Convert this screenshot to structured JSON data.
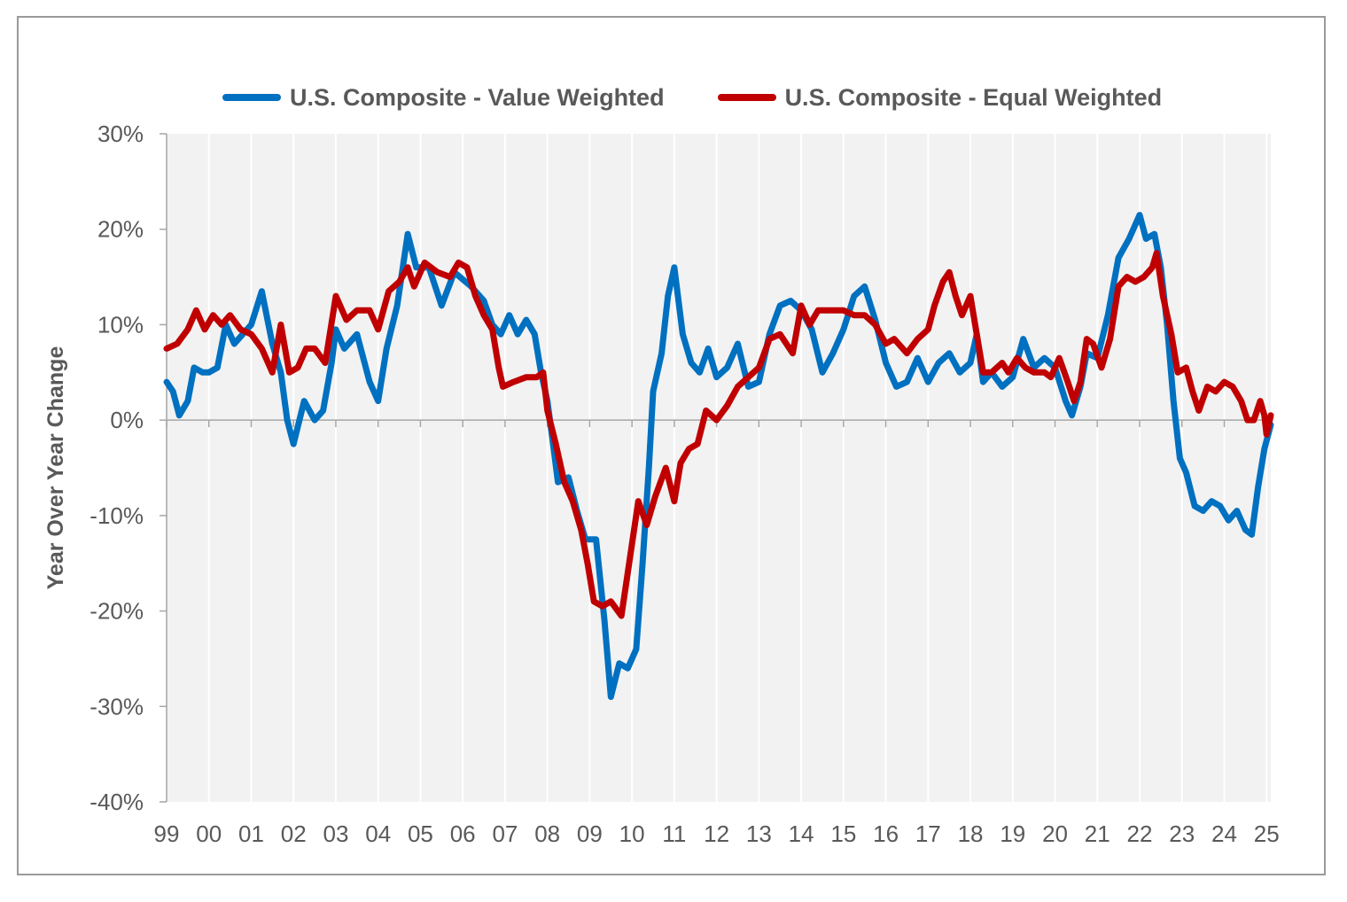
{
  "chart_data": {
    "type": "line",
    "title": "",
    "xlabel": "",
    "ylabel": "Year Over Year Change",
    "x_range": [
      1999.0,
      2025.1
    ],
    "ylim": [
      -40,
      30
    ],
    "y_ticks": [
      30,
      20,
      10,
      0,
      -10,
      -20,
      -30,
      -40
    ],
    "y_tick_labels": [
      "30%",
      "20%",
      "10%",
      "0%",
      "-10%",
      "-20%",
      "-30%",
      "-40%"
    ],
    "x_ticks": [
      1999,
      2000,
      2001,
      2002,
      2003,
      2004,
      2005,
      2006,
      2007,
      2008,
      2009,
      2010,
      2011,
      2012,
      2013,
      2014,
      2015,
      2016,
      2017,
      2018,
      2019,
      2020,
      2021,
      2022,
      2023,
      2024,
      2025
    ],
    "x_tick_labels": [
      "99",
      "00",
      "01",
      "02",
      "03",
      "04",
      "05",
      "06",
      "07",
      "08",
      "09",
      "10",
      "11",
      "12",
      "13",
      "14",
      "15",
      "16",
      "17",
      "18",
      "19",
      "20",
      "21",
      "22",
      "23",
      "24",
      "25"
    ],
    "grid": "vertical",
    "legend_position": "top",
    "series": [
      {
        "name": "U.S. Composite - Value Weighted",
        "color": "#0070C0",
        "points": [
          [
            1999.0,
            4
          ],
          [
            1999.15,
            3
          ],
          [
            1999.3,
            0.5
          ],
          [
            1999.5,
            2
          ],
          [
            1999.65,
            5.5
          ],
          [
            1999.85,
            5
          ],
          [
            2000.0,
            5
          ],
          [
            2000.2,
            5.5
          ],
          [
            2000.4,
            10
          ],
          [
            2000.6,
            8
          ],
          [
            2000.8,
            9
          ],
          [
            2001.0,
            10
          ],
          [
            2001.25,
            13.5
          ],
          [
            2001.5,
            8
          ],
          [
            2001.7,
            5
          ],
          [
            2001.85,
            0
          ],
          [
            2002.0,
            -2.5
          ],
          [
            2002.25,
            2
          ],
          [
            2002.5,
            0
          ],
          [
            2002.7,
            1
          ],
          [
            2002.9,
            6
          ],
          [
            2003.0,
            9.5
          ],
          [
            2003.2,
            7.5
          ],
          [
            2003.5,
            9
          ],
          [
            2003.8,
            4
          ],
          [
            2004.0,
            2
          ],
          [
            2004.2,
            7.5
          ],
          [
            2004.45,
            12
          ],
          [
            2004.7,
            19.5
          ],
          [
            2004.9,
            16
          ],
          [
            2005.2,
            16
          ],
          [
            2005.5,
            12
          ],
          [
            2005.8,
            15.5
          ],
          [
            2006.2,
            14
          ],
          [
            2006.5,
            12.5
          ],
          [
            2006.7,
            10
          ],
          [
            2006.9,
            9
          ],
          [
            2007.1,
            11
          ],
          [
            2007.3,
            9
          ],
          [
            2007.5,
            10.5
          ],
          [
            2007.7,
            9
          ],
          [
            2007.85,
            5
          ],
          [
            2008.0,
            2
          ],
          [
            2008.15,
            -3
          ],
          [
            2008.25,
            -6.5
          ],
          [
            2008.5,
            -6
          ],
          [
            2008.7,
            -9.5
          ],
          [
            2008.9,
            -12.5
          ],
          [
            2009.15,
            -12.5
          ],
          [
            2009.35,
            -21
          ],
          [
            2009.5,
            -29
          ],
          [
            2009.7,
            -25.5
          ],
          [
            2009.9,
            -26
          ],
          [
            2010.1,
            -24
          ],
          [
            2010.25,
            -15
          ],
          [
            2010.4,
            -5
          ],
          [
            2010.5,
            3
          ],
          [
            2010.7,
            7
          ],
          [
            2010.85,
            13
          ],
          [
            2011.0,
            16
          ],
          [
            2011.2,
            9
          ],
          [
            2011.4,
            6
          ],
          [
            2011.6,
            5
          ],
          [
            2011.8,
            7.5
          ],
          [
            2012.0,
            4.5
          ],
          [
            2012.25,
            5.5
          ],
          [
            2012.5,
            8
          ],
          [
            2012.75,
            3.5
          ],
          [
            2013.0,
            4
          ],
          [
            2013.25,
            9
          ],
          [
            2013.5,
            12
          ],
          [
            2013.75,
            12.5
          ],
          [
            2014.0,
            11.5
          ],
          [
            2014.25,
            9.5
          ],
          [
            2014.5,
            5
          ],
          [
            2014.75,
            7
          ],
          [
            2015.0,
            9.5
          ],
          [
            2015.25,
            13
          ],
          [
            2015.5,
            14
          ],
          [
            2015.75,
            10.5
          ],
          [
            2016.0,
            6
          ],
          [
            2016.25,
            3.5
          ],
          [
            2016.5,
            4
          ],
          [
            2016.75,
            6.5
          ],
          [
            2017.0,
            4
          ],
          [
            2017.25,
            6
          ],
          [
            2017.5,
            7
          ],
          [
            2017.75,
            5
          ],
          [
            2018.0,
            6
          ],
          [
            2018.15,
            9
          ],
          [
            2018.3,
            4
          ],
          [
            2018.5,
            5
          ],
          [
            2018.75,
            3.5
          ],
          [
            2019.0,
            4.5
          ],
          [
            2019.25,
            8.5
          ],
          [
            2019.5,
            5.5
          ],
          [
            2019.75,
            6.5
          ],
          [
            2020.0,
            5.5
          ],
          [
            2020.25,
            2
          ],
          [
            2020.4,
            0.5
          ],
          [
            2020.6,
            3.5
          ],
          [
            2020.75,
            7
          ],
          [
            2021.0,
            6.5
          ],
          [
            2021.25,
            11
          ],
          [
            2021.5,
            17
          ],
          [
            2021.75,
            19
          ],
          [
            2022.0,
            21.5
          ],
          [
            2022.15,
            19
          ],
          [
            2022.35,
            19.5
          ],
          [
            2022.5,
            16
          ],
          [
            2022.65,
            10
          ],
          [
            2022.8,
            2
          ],
          [
            2022.95,
            -4
          ],
          [
            2023.1,
            -5.5
          ],
          [
            2023.3,
            -9
          ],
          [
            2023.5,
            -9.5
          ],
          [
            2023.7,
            -8.5
          ],
          [
            2023.9,
            -9
          ],
          [
            2024.1,
            -10.5
          ],
          [
            2024.3,
            -9.5
          ],
          [
            2024.5,
            -11.5
          ],
          [
            2024.65,
            -12
          ],
          [
            2024.8,
            -7
          ],
          [
            2024.95,
            -3
          ],
          [
            2025.1,
            -0.5
          ]
        ]
      },
      {
        "name": "U.S. Composite - Equal Weighted",
        "color": "#C00000",
        "points": [
          [
            1999.0,
            7.5
          ],
          [
            1999.25,
            8
          ],
          [
            1999.5,
            9.5
          ],
          [
            1999.7,
            11.5
          ],
          [
            1999.9,
            9.5
          ],
          [
            2000.1,
            11
          ],
          [
            2000.3,
            10
          ],
          [
            2000.5,
            11
          ],
          [
            2000.75,
            9.5
          ],
          [
            2001.0,
            9
          ],
          [
            2001.25,
            7.5
          ],
          [
            2001.5,
            5
          ],
          [
            2001.7,
            10
          ],
          [
            2001.9,
            5
          ],
          [
            2002.1,
            5.5
          ],
          [
            2002.3,
            7.5
          ],
          [
            2002.5,
            7.5
          ],
          [
            2002.75,
            6
          ],
          [
            2003.0,
            13
          ],
          [
            2003.25,
            10.5
          ],
          [
            2003.5,
            11.5
          ],
          [
            2003.8,
            11.5
          ],
          [
            2004.0,
            9.5
          ],
          [
            2004.25,
            13.5
          ],
          [
            2004.5,
            14.5
          ],
          [
            2004.7,
            16
          ],
          [
            2004.85,
            14
          ],
          [
            2005.1,
            16.5
          ],
          [
            2005.4,
            15.5
          ],
          [
            2005.7,
            15
          ],
          [
            2005.9,
            16.5
          ],
          [
            2006.1,
            16
          ],
          [
            2006.3,
            13
          ],
          [
            2006.5,
            11
          ],
          [
            2006.7,
            9.5
          ],
          [
            2006.85,
            5.5
          ],
          [
            2006.95,
            3.5
          ],
          [
            2007.2,
            4
          ],
          [
            2007.5,
            4.5
          ],
          [
            2007.75,
            4.5
          ],
          [
            2007.9,
            5
          ],
          [
            2008.0,
            1
          ],
          [
            2008.2,
            -2.5
          ],
          [
            2008.4,
            -6.5
          ],
          [
            2008.6,
            -8.5
          ],
          [
            2008.8,
            -11.5
          ],
          [
            2008.95,
            -15
          ],
          [
            2009.1,
            -19
          ],
          [
            2009.3,
            -19.5
          ],
          [
            2009.5,
            -19
          ],
          [
            2009.75,
            -20.5
          ],
          [
            2009.85,
            -17.5
          ],
          [
            2010.0,
            -13
          ],
          [
            2010.15,
            -8.5
          ],
          [
            2010.35,
            -11
          ],
          [
            2010.55,
            -8
          ],
          [
            2010.8,
            -5
          ],
          [
            2011.0,
            -8.5
          ],
          [
            2011.15,
            -4.5
          ],
          [
            2011.35,
            -3
          ],
          [
            2011.55,
            -2.5
          ],
          [
            2011.75,
            1
          ],
          [
            2012.0,
            0
          ],
          [
            2012.25,
            1.5
          ],
          [
            2012.5,
            3.5
          ],
          [
            2012.75,
            4.5
          ],
          [
            2013.0,
            5.5
          ],
          [
            2013.25,
            8.5
          ],
          [
            2013.5,
            9
          ],
          [
            2013.8,
            7
          ],
          [
            2014.0,
            12
          ],
          [
            2014.2,
            10
          ],
          [
            2014.4,
            11.5
          ],
          [
            2014.75,
            11.5
          ],
          [
            2015.0,
            11.5
          ],
          [
            2015.25,
            11
          ],
          [
            2015.5,
            11
          ],
          [
            2015.75,
            10
          ],
          [
            2016.0,
            8
          ],
          [
            2016.2,
            8.5
          ],
          [
            2016.5,
            7
          ],
          [
            2016.75,
            8.5
          ],
          [
            2017.0,
            9.5
          ],
          [
            2017.15,
            12
          ],
          [
            2017.35,
            14.5
          ],
          [
            2017.5,
            15.5
          ],
          [
            2017.65,
            13
          ],
          [
            2017.8,
            11
          ],
          [
            2018.0,
            13
          ],
          [
            2018.15,
            9
          ],
          [
            2018.3,
            5
          ],
          [
            2018.5,
            5
          ],
          [
            2018.75,
            6
          ],
          [
            2018.9,
            5
          ],
          [
            2019.1,
            6.5
          ],
          [
            2019.3,
            5.5
          ],
          [
            2019.5,
            5
          ],
          [
            2019.75,
            5
          ],
          [
            2019.9,
            4.5
          ],
          [
            2020.1,
            6.5
          ],
          [
            2020.3,
            4
          ],
          [
            2020.45,
            2
          ],
          [
            2020.6,
            4
          ],
          [
            2020.75,
            8.5
          ],
          [
            2020.9,
            8
          ],
          [
            2021.1,
            5.5
          ],
          [
            2021.3,
            8.5
          ],
          [
            2021.5,
            14
          ],
          [
            2021.7,
            15
          ],
          [
            2021.9,
            14.5
          ],
          [
            2022.1,
            15
          ],
          [
            2022.3,
            16
          ],
          [
            2022.4,
            17.5
          ],
          [
            2022.55,
            13
          ],
          [
            2022.75,
            9
          ],
          [
            2022.9,
            5
          ],
          [
            2023.1,
            5.5
          ],
          [
            2023.25,
            3
          ],
          [
            2023.4,
            1
          ],
          [
            2023.6,
            3.5
          ],
          [
            2023.8,
            3
          ],
          [
            2024.0,
            4
          ],
          [
            2024.2,
            3.5
          ],
          [
            2024.4,
            2
          ],
          [
            2024.55,
            0
          ],
          [
            2024.7,
            0
          ],
          [
            2024.85,
            2
          ],
          [
            2024.95,
            0.5
          ],
          [
            2025.0,
            -1.5
          ],
          [
            2025.1,
            0.5
          ]
        ]
      }
    ]
  }
}
